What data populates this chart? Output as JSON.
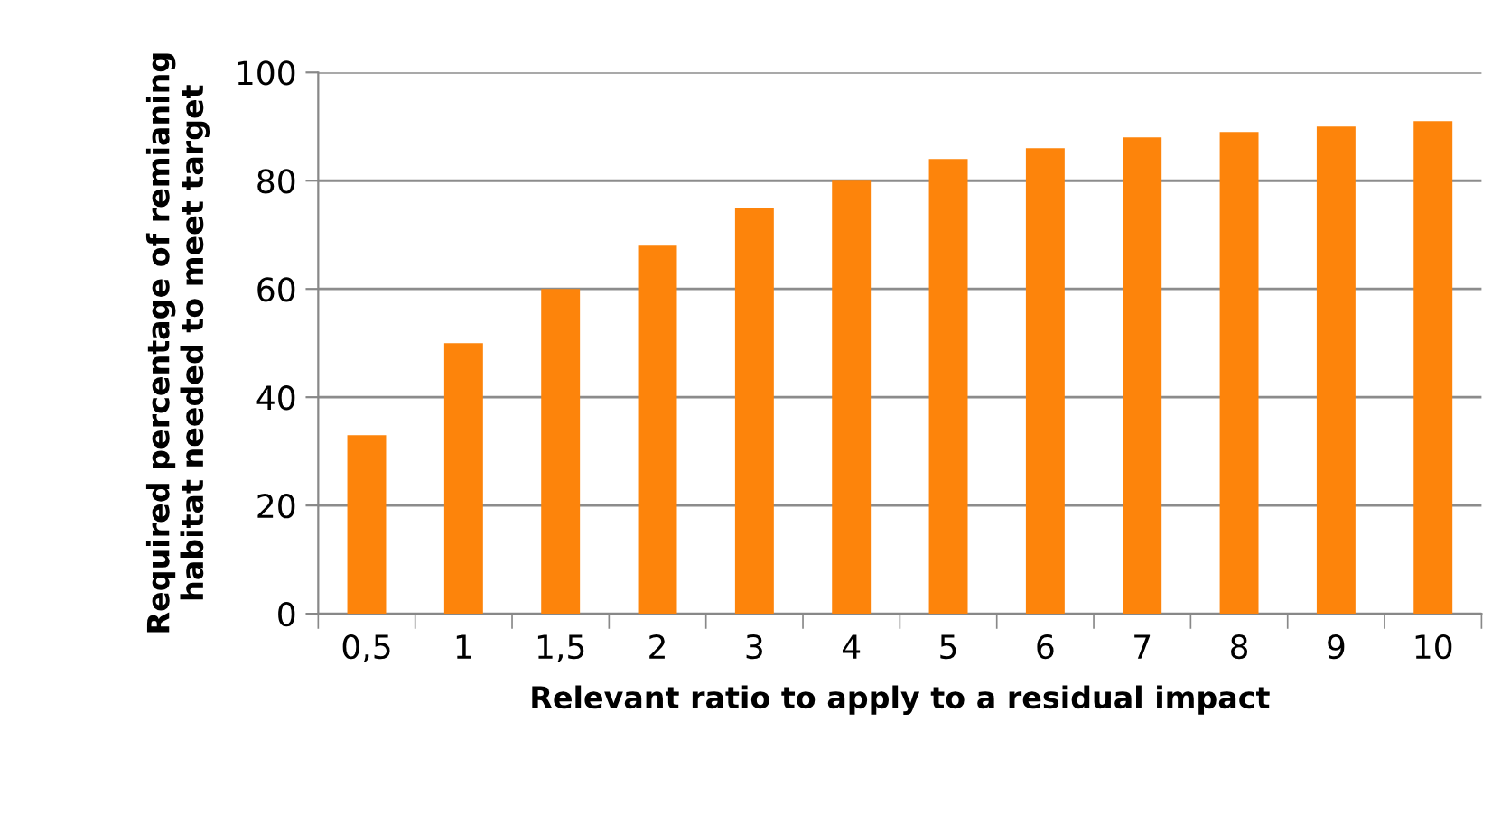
{
  "chart_data": {
    "type": "bar",
    "xlabel": "Relevant ratio to apply to a residual impact",
    "ylabel": "Required percentage of remianing\nhabitat needed to meet target",
    "categories": [
      "0,5",
      "1",
      "1,5",
      "2",
      "3",
      "4",
      "5",
      "6",
      "7",
      "8",
      "9",
      "10"
    ],
    "values": [
      33,
      50,
      60,
      68,
      75,
      80,
      84,
      86,
      88,
      89,
      90,
      91
    ],
    "color": "#fd840b",
    "ylim": [
      0,
      100
    ],
    "yticks": [
      0,
      20,
      40,
      60,
      80,
      100
    ],
    "grid": "y",
    "legend": false
  }
}
